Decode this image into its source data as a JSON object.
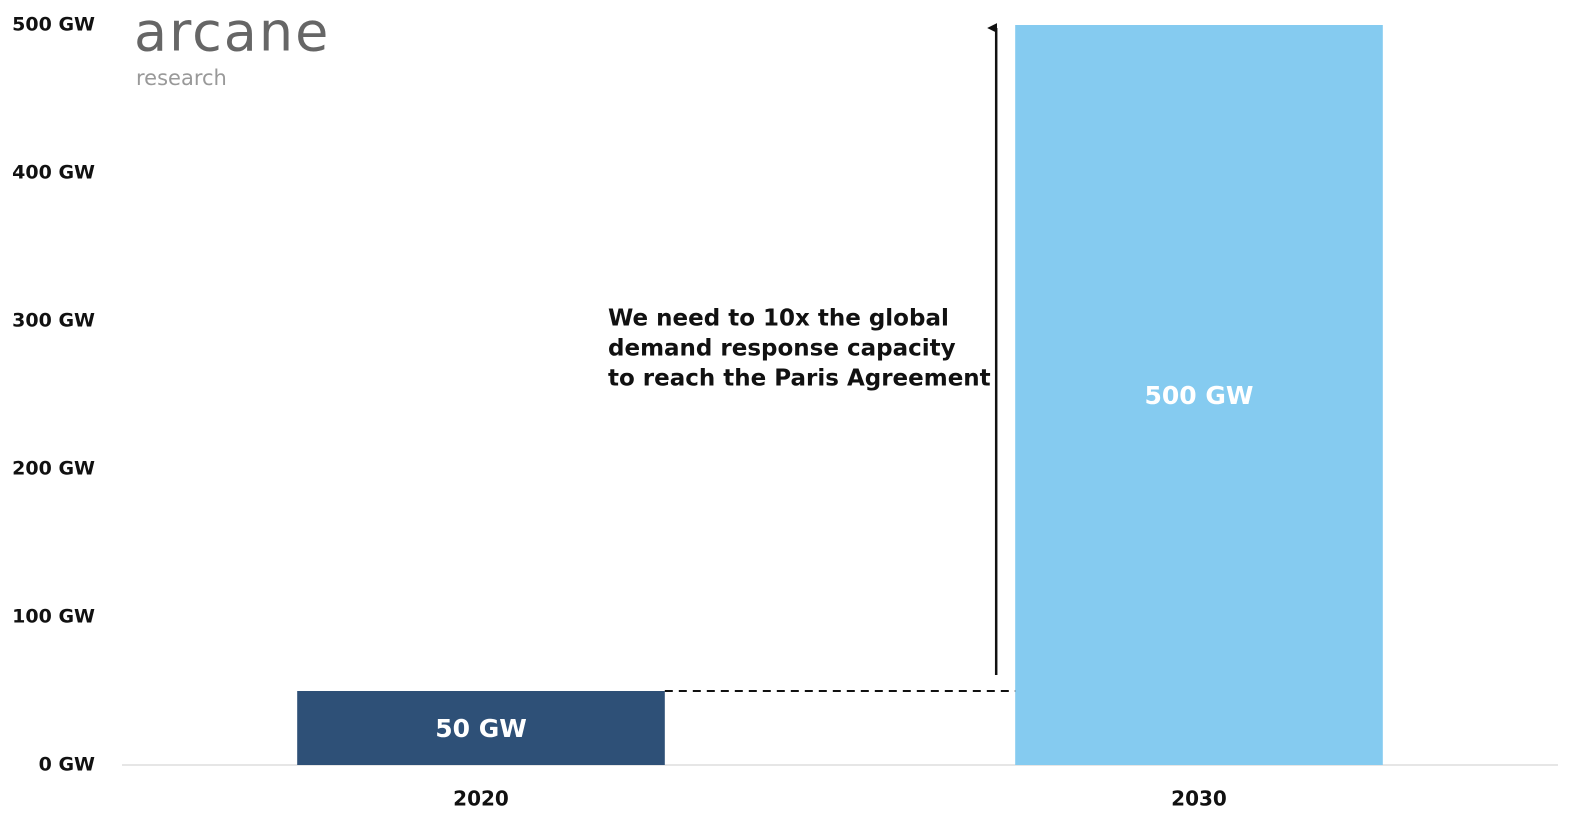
{
  "logo": {
    "name": "arcane",
    "tagline": "research"
  },
  "chart_data": {
    "type": "bar",
    "categories": [
      "2020",
      "2030"
    ],
    "values": [
      50,
      500
    ],
    "value_labels": [
      "50 GW",
      "500 GW"
    ],
    "colors": [
      "#2e5077",
      "#85cbf0"
    ],
    "ylim": [
      0,
      500
    ],
    "yticks": [
      {
        "value": 0,
        "label": "0 GW"
      },
      {
        "value": 100,
        "label": "100 GW"
      },
      {
        "value": 200,
        "label": "200 GW"
      },
      {
        "value": 300,
        "label": "300 GW"
      },
      {
        "value": 400,
        "label": "400 GW"
      },
      {
        "value": 500,
        "label": "500 GW"
      }
    ],
    "grid": false,
    "annotation": [
      "We need to 10x the global",
      "demand response capacity",
      "to reach the Paris Agreement"
    ]
  }
}
